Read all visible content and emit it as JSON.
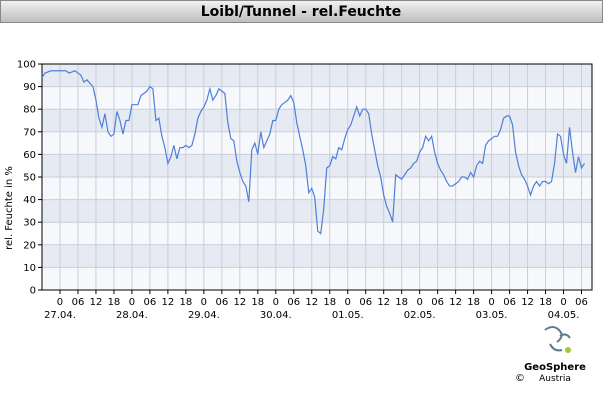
{
  "chart_data": {
    "type": "line",
    "title": "Loibl/Tunnel - rel.Feuchte",
    "ylabel": "rel. Feuchte in %",
    "x": [
      -6,
      -5,
      -3,
      2,
      3,
      5,
      7,
      8,
      9,
      11,
      12,
      13,
      14,
      15,
      16,
      17,
      18,
      19,
      20,
      21,
      22,
      23,
      24,
      25,
      26,
      27,
      28,
      29,
      30,
      31,
      32,
      33,
      34,
      35,
      36,
      37,
      38,
      39,
      40,
      41,
      42,
      43,
      44,
      45,
      46,
      47,
      48,
      49,
      50,
      51,
      52,
      53,
      54,
      55,
      56,
      57,
      58,
      59,
      60,
      61,
      62,
      63,
      64,
      65,
      66,
      67,
      68,
      69,
      70,
      71,
      72,
      73,
      74,
      75,
      76,
      77,
      78,
      79,
      80,
      81,
      82,
      83,
      84,
      85,
      86,
      87,
      88,
      89,
      90,
      91,
      92,
      93,
      94,
      95,
      96,
      97,
      98,
      99,
      100,
      101,
      102,
      103,
      104,
      105,
      106,
      107,
      108,
      109,
      110,
      111,
      112,
      113,
      114,
      115,
      116,
      117,
      118,
      119,
      120,
      121,
      122,
      123,
      124,
      125,
      126,
      127,
      128,
      129,
      130,
      131,
      132,
      133,
      134,
      135,
      136,
      137,
      138,
      139,
      140,
      141,
      142,
      143,
      144,
      145,
      146,
      147,
      148,
      149,
      150,
      151,
      152,
      153,
      154,
      155,
      156,
      157,
      158,
      159,
      160,
      161,
      162,
      163,
      164,
      165,
      166,
      167,
      168,
      169,
      170,
      171,
      172,
      173,
      174,
      175
    ],
    "series": [
      {
        "name": "rel. Feuchte",
        "color": "#4f7fd9",
        "values": [
          94,
          96,
          97,
          97,
          96,
          97,
          95,
          92,
          93,
          90,
          84,
          76,
          72,
          78,
          70,
          68,
          69,
          79,
          75,
          69,
          75,
          75,
          82,
          82,
          82,
          86,
          87,
          88,
          90,
          89,
          75,
          76,
          68,
          63,
          56,
          59,
          64,
          58,
          63,
          63,
          64,
          63,
          64,
          69,
          76,
          79,
          81,
          84,
          89,
          84,
          86,
          89,
          88,
          87,
          74,
          67,
          66,
          57,
          52,
          48,
          46,
          39,
          62,
          65,
          60,
          70,
          63,
          66,
          69,
          75,
          75,
          80,
          82,
          83,
          84,
          86,
          83,
          74,
          68,
          62,
          55,
          43,
          45,
          41,
          26,
          25,
          36,
          54,
          55,
          59,
          58,
          63,
          62,
          67,
          71,
          73,
          77,
          81,
          77,
          80,
          80,
          78,
          69,
          62,
          55,
          50,
          42,
          37,
          34,
          30,
          51,
          50,
          49,
          51,
          53,
          54,
          56,
          57,
          61,
          63,
          68,
          66,
          68,
          61,
          56,
          53,
          51,
          48,
          46,
          46,
          47,
          48,
          50,
          50,
          49,
          52,
          50,
          55,
          57,
          56,
          64,
          66,
          67,
          68,
          68,
          71,
          76,
          77,
          77,
          73,
          61,
          55,
          51,
          49,
          46,
          42,
          46,
          48,
          46,
          48,
          48,
          47,
          48,
          56,
          69,
          68,
          60,
          56,
          72,
          61,
          52,
          59,
          54,
          56
        ]
      }
    ],
    "xlim": [
      -6,
      177.5
    ],
    "ylim": [
      0,
      100
    ],
    "yticks": [
      0,
      10,
      20,
      30,
      40,
      50,
      60,
      70,
      80,
      90,
      100
    ],
    "xticks": [
      0,
      {
        "value": 6,
        "label": "06"
      },
      {
        "value": 12,
        "label": "12"
      },
      {
        "value": 18,
        "label": "18"
      },
      {
        "value": 24,
        "label": "0"
      },
      {
        "value": 30,
        "label": "06"
      },
      {
        "value": 36,
        "label": "12"
      },
      {
        "value": 42,
        "label": "18"
      },
      {
        "value": 48,
        "label": "0"
      },
      {
        "value": 54,
        "label": "06"
      },
      {
        "value": 60,
        "label": "12"
      },
      {
        "value": 66,
        "label": "18"
      },
      {
        "value": 72,
        "label": "0"
      },
      {
        "value": 78,
        "label": "06"
      },
      {
        "value": 84,
        "label": "12"
      },
      {
        "value": 90,
        "label": "18"
      },
      {
        "value": 96,
        "label": "0"
      },
      {
        "value": 102,
        "label": "06"
      },
      {
        "value": 108,
        "label": "12"
      },
      {
        "value": 114,
        "label": "18"
      },
      {
        "value": 120,
        "label": "0"
      },
      {
        "value": 126,
        "label": "06"
      },
      {
        "value": 132,
        "label": "12"
      },
      {
        "value": 138,
        "label": "18"
      },
      {
        "value": 144,
        "label": "0"
      },
      {
        "value": 150,
        "label": "06"
      },
      {
        "value": 156,
        "label": "12"
      },
      {
        "value": 162,
        "label": "18"
      },
      {
        "value": 168,
        "label": "0"
      },
      {
        "value": 174,
        "label": "06"
      }
    ],
    "date_labels": [
      {
        "value": 0,
        "label": "27.04."
      },
      {
        "value": 24,
        "label": "28.04."
      },
      {
        "value": 48,
        "label": "29.04."
      },
      {
        "value": 72,
        "label": "30.04."
      },
      {
        "value": 96,
        "label": "01.05."
      },
      {
        "value": 120,
        "label": "02.05."
      },
      {
        "value": 144,
        "label": "03.05."
      },
      {
        "value": 168,
        "label": "04.05."
      }
    ],
    "grid": true
  },
  "logo": {
    "copyright": "©",
    "brand": "GeoSphere",
    "country": "Austria"
  }
}
